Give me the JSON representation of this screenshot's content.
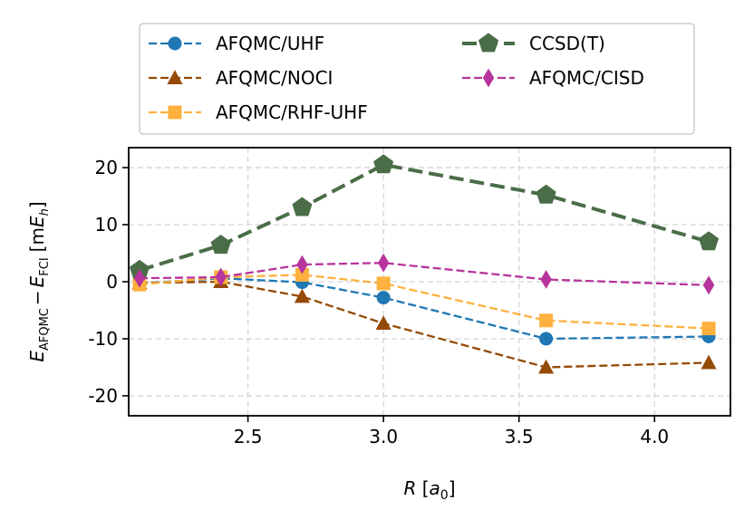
{
  "chart_data": {
    "type": "line",
    "title": "",
    "xlabel_parts": {
      "main": "R",
      "unit": "a",
      "unit_sub": "0"
    },
    "ylabel_parts": {
      "e1": "E",
      "e1_sub": "AFQMC",
      "minus": "−",
      "e2": "E",
      "e2_sub": "FCI",
      "unit_pre": "m",
      "unit": "E",
      "unit_sub": "h"
    },
    "xlim": [
      2.06,
      4.28
    ],
    "ylim": [
      -23.5,
      23.5
    ],
    "xticks": [
      2.5,
      3.0,
      3.5,
      4.0
    ],
    "xtick_labels": [
      "2.5",
      "3.0",
      "3.5",
      "4.0"
    ],
    "yticks": [
      -20,
      -10,
      0,
      10,
      20
    ],
    "ytick_labels": [
      "-20",
      "-10",
      "0",
      "10",
      "20"
    ],
    "grid": true,
    "legend_position": "top, above plot",
    "series": [
      {
        "name": "AFQMC/UHF",
        "color": "#1f77b4",
        "marker": "circle",
        "dash": "dashed",
        "x": [
          2.1,
          2.4,
          2.7,
          3.0,
          3.6,
          4.2
        ],
        "y": [
          -0.3,
          0.6,
          -0.1,
          -2.8,
          -10.0,
          -9.6
        ]
      },
      {
        "name": "AFQMC/NOCI",
        "color": "#954a05",
        "marker": "triangle",
        "dash": "dashed",
        "x": [
          2.1,
          2.4,
          2.7,
          3.0,
          3.6,
          4.2
        ],
        "y": [
          -0.2,
          0.0,
          -2.6,
          -7.3,
          -15.0,
          -14.2
        ]
      },
      {
        "name": "AFQMC/RHF-UHF",
        "color": "#feb13e",
        "marker": "square",
        "dash": "dashed",
        "x": [
          2.1,
          2.4,
          2.7,
          3.0,
          3.6,
          4.2
        ],
        "y": [
          -0.5,
          0.8,
          1.2,
          -0.3,
          -6.8,
          -8.2
        ]
      },
      {
        "name": "CCSD(T)",
        "color": "#4a6d47",
        "marker": "pentagon",
        "dash": "dashed-thick",
        "x": [
          2.1,
          2.4,
          2.7,
          3.0,
          3.6,
          4.2
        ],
        "y": [
          2.0,
          6.4,
          13.0,
          20.5,
          15.2,
          7.0
        ]
      },
      {
        "name": "AFQMC/CISD",
        "color": "#b7349c",
        "marker": "diamond",
        "dash": "dashed",
        "x": [
          2.1,
          2.4,
          2.7,
          3.0,
          3.6,
          4.2
        ],
        "y": [
          0.6,
          0.8,
          3.0,
          3.3,
          0.4,
          -0.6
        ]
      }
    ]
  }
}
